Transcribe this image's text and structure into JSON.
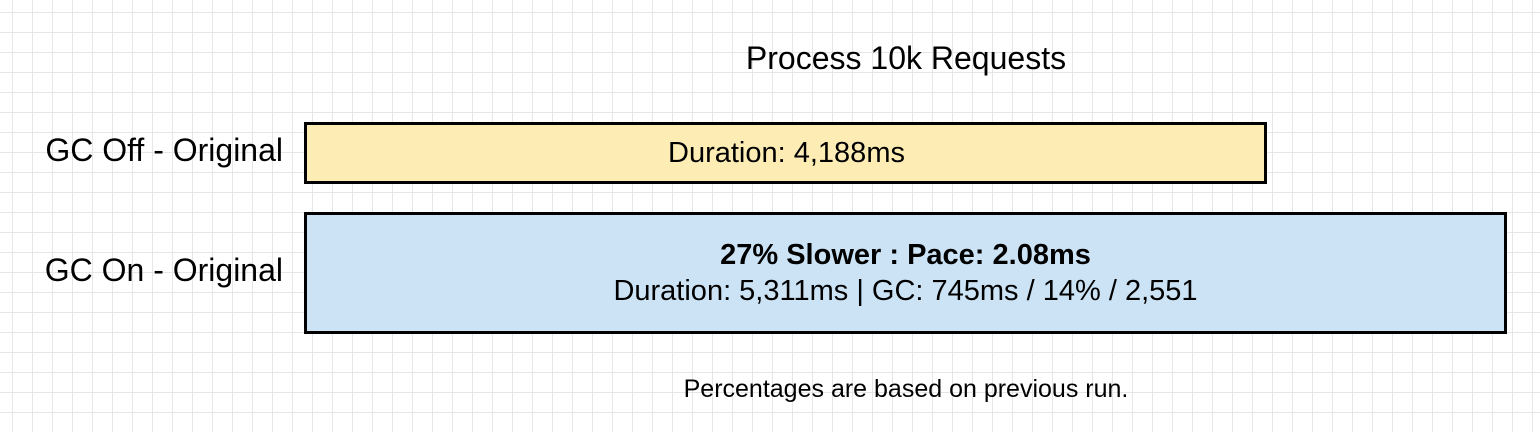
{
  "title": "Process 10k Requests",
  "rows": [
    {
      "label": "GC Off - Original",
      "duration_text": "Duration: 4,188ms",
      "duration_ms": 4188,
      "fill_color": "#fdedb5"
    },
    {
      "label": "GC On - Original",
      "headline": "27% Slower : Pace: 2.08ms",
      "detail": "Duration: 5,311ms | GC: 745ms / 14% / 2,551",
      "duration_ms": 5311,
      "fill_color": "#cbe3f5"
    }
  ],
  "footnote": "Percentages are based on previous run."
}
